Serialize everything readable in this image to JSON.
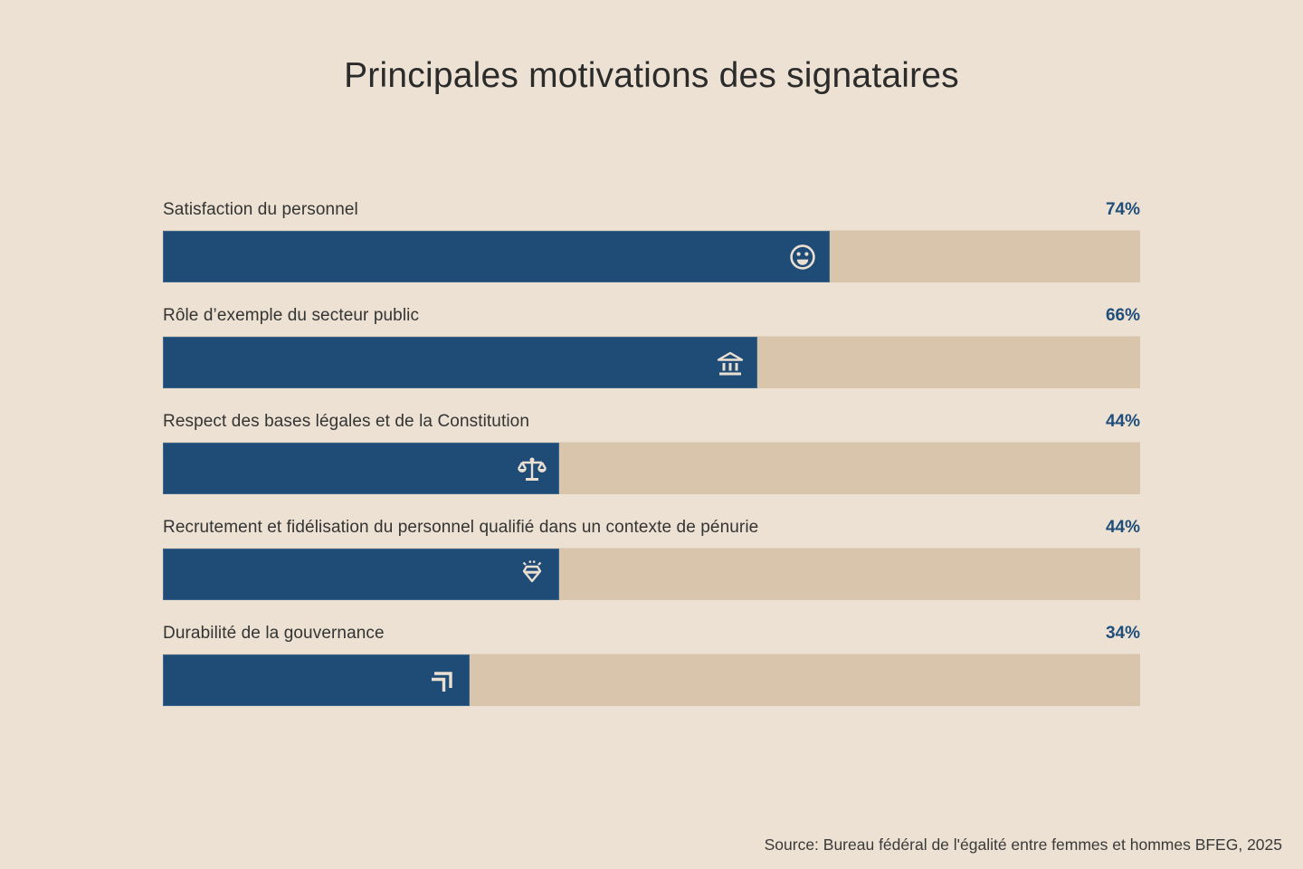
{
  "title": "Principales motivations des signataires",
  "source": "Source: Bureau fédéral de l'égalité entre femmes et hommes BFEG, 2025",
  "colors": {
    "background": "#ECE1D2",
    "track": "#D8C5AB",
    "bar": "#1E4C77",
    "accent_text": "#1F4E7B",
    "title_text": "#2B2B2B",
    "label_text": "#343434",
    "icon": "#EADFD1"
  },
  "chart_data": {
    "type": "bar",
    "orientation": "horizontal",
    "title": "Principales motivations des signataires",
    "categories": [
      "Satisfaction du personnel",
      "Rôle d’exemple du secteur public",
      "Respect des bases légales et de la Constitution",
      "Recrutement et fidélisation du personnel qualifié dans un contexte de pénurie",
      "Durabilité de la gouvernance"
    ],
    "values": [
      74,
      66,
      44,
      44,
      34
    ],
    "value_labels": [
      "74%",
      "66%",
      "44%",
      "44%",
      "34%"
    ],
    "unit": "%",
    "xlim": [
      0,
      100
    ],
    "grid": false,
    "legend": "none",
    "icons": [
      "smiley-icon",
      "bank-icon",
      "scales-icon",
      "diamond-icon",
      "corner-arrows-icon"
    ],
    "source": "Source: Bureau fédéral de l'égalité entre femmes et hommes BFEG, 2025"
  }
}
